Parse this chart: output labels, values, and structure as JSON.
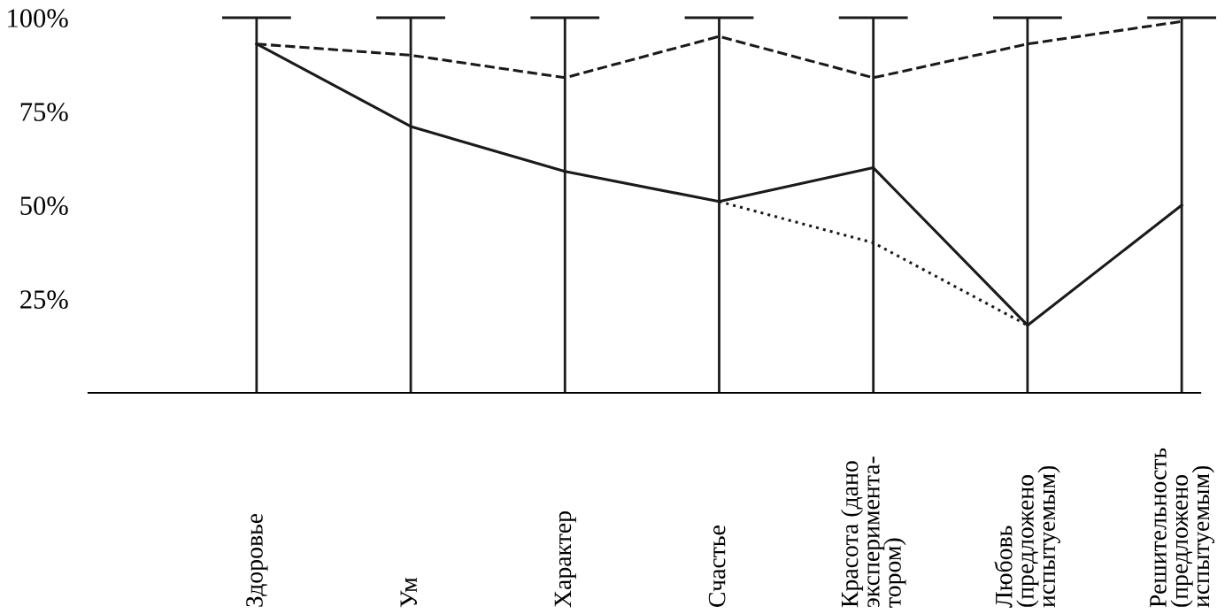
{
  "chart_data": {
    "type": "line",
    "categories": [
      "Здоровье",
      "Ум",
      "Характер",
      "Счастье",
      "Красота (дано\nэксперимента-\nтором)",
      "Любовь\n(предложено\nиспытуемым)",
      "Решительность\n(предложено\nиспытуемым)"
    ],
    "series": [
      {
        "color": "#1a1a1a",
        "line_style": "solid",
        "values": [
          93,
          71,
          59,
          51,
          60,
          18,
          50
        ]
      },
      {
        "color": "#1a1a1a",
        "line_style": "dashed",
        "values": [
          93,
          90,
          84,
          95,
          84,
          93,
          99
        ]
      },
      {
        "color": "#1a1a1a",
        "line_style": "dotted",
        "values": [
          null,
          null,
          null,
          51,
          40,
          18,
          null
        ]
      }
    ],
    "ylim": [
      0,
      100
    ],
    "yticks": [
      {
        "value": 25,
        "label": "25%"
      },
      {
        "value": 50,
        "label": "50%"
      },
      {
        "value": 75,
        "label": "75%"
      },
      {
        "value": 100,
        "label": "100%"
      }
    ],
    "grid": "x",
    "legend": false,
    "marker": "none"
  }
}
